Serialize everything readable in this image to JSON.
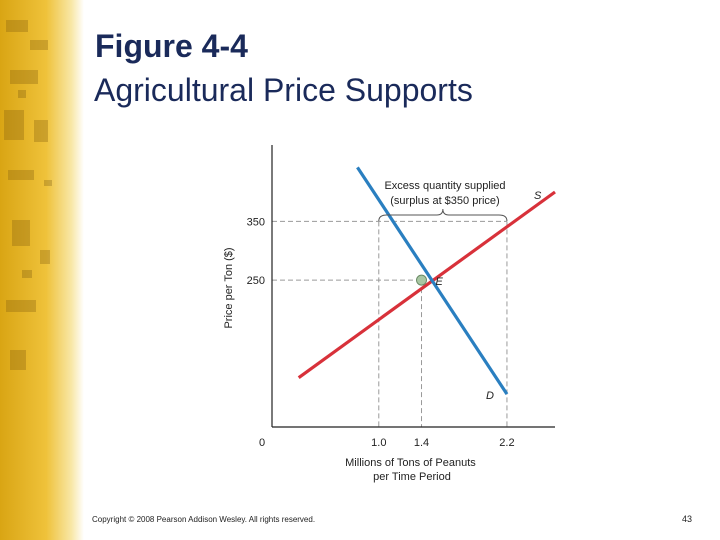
{
  "slide": {
    "title_line1": "Figure 4-4",
    "title_line2": "Agricultural Price Supports",
    "copyright": "Copyright © 2008 Pearson Addison Wesley. All rights reserved.",
    "page_number": "43"
  },
  "colors": {
    "title": "#1a2a5a",
    "supply": "#d8313a",
    "demand": "#2a7fc0",
    "dashed": "#9a9a9a",
    "axis": "#222222",
    "sidebar_gold": "#e8b61c"
  },
  "chart_data": {
    "type": "line",
    "title": "",
    "xlabel": "Millions of Tons of Peanuts per Time Period",
    "ylabel": "Price per Ton ($)",
    "xlim": [
      0,
      2.65
    ],
    "ylim": [
      0,
      480
    ],
    "x_ticks": [
      {
        "value": 0,
        "label": "0"
      },
      {
        "value": 1.0,
        "label": "1.0"
      },
      {
        "value": 1.4,
        "label": "1.4"
      },
      {
        "value": 2.2,
        "label": "2.2"
      }
    ],
    "y_ticks": [
      {
        "value": 250,
        "label": "250"
      },
      {
        "value": 350,
        "label": "350"
      }
    ],
    "grid": false,
    "series": [
      {
        "name": "S",
        "color": "#d8313a",
        "points": [
          [
            0.25,
            84
          ],
          [
            2.65,
            400
          ]
        ]
      },
      {
        "name": "D",
        "color": "#2a7fc0",
        "points": [
          [
            0.8,
            442
          ],
          [
            2.2,
            56
          ]
        ]
      }
    ],
    "guides": [
      {
        "from": [
          0,
          350
        ],
        "to": [
          2.2,
          350
        ]
      },
      {
        "from": [
          0,
          250
        ],
        "to": [
          1.4,
          250
        ]
      },
      {
        "from": [
          1.0,
          350
        ],
        "to": [
          1.0,
          0
        ]
      },
      {
        "from": [
          1.4,
          250
        ],
        "to": [
          1.4,
          0
        ]
      },
      {
        "from": [
          2.2,
          350
        ],
        "to": [
          2.2,
          0
        ]
      }
    ],
    "equilibrium": {
      "x": 1.4,
      "y": 250,
      "label": "E"
    },
    "annotation": {
      "line1": "Excess quantity supplied",
      "line2": "(surplus at $350 price)",
      "brace_from_x": 1.0,
      "brace_to_x": 2.2
    }
  }
}
